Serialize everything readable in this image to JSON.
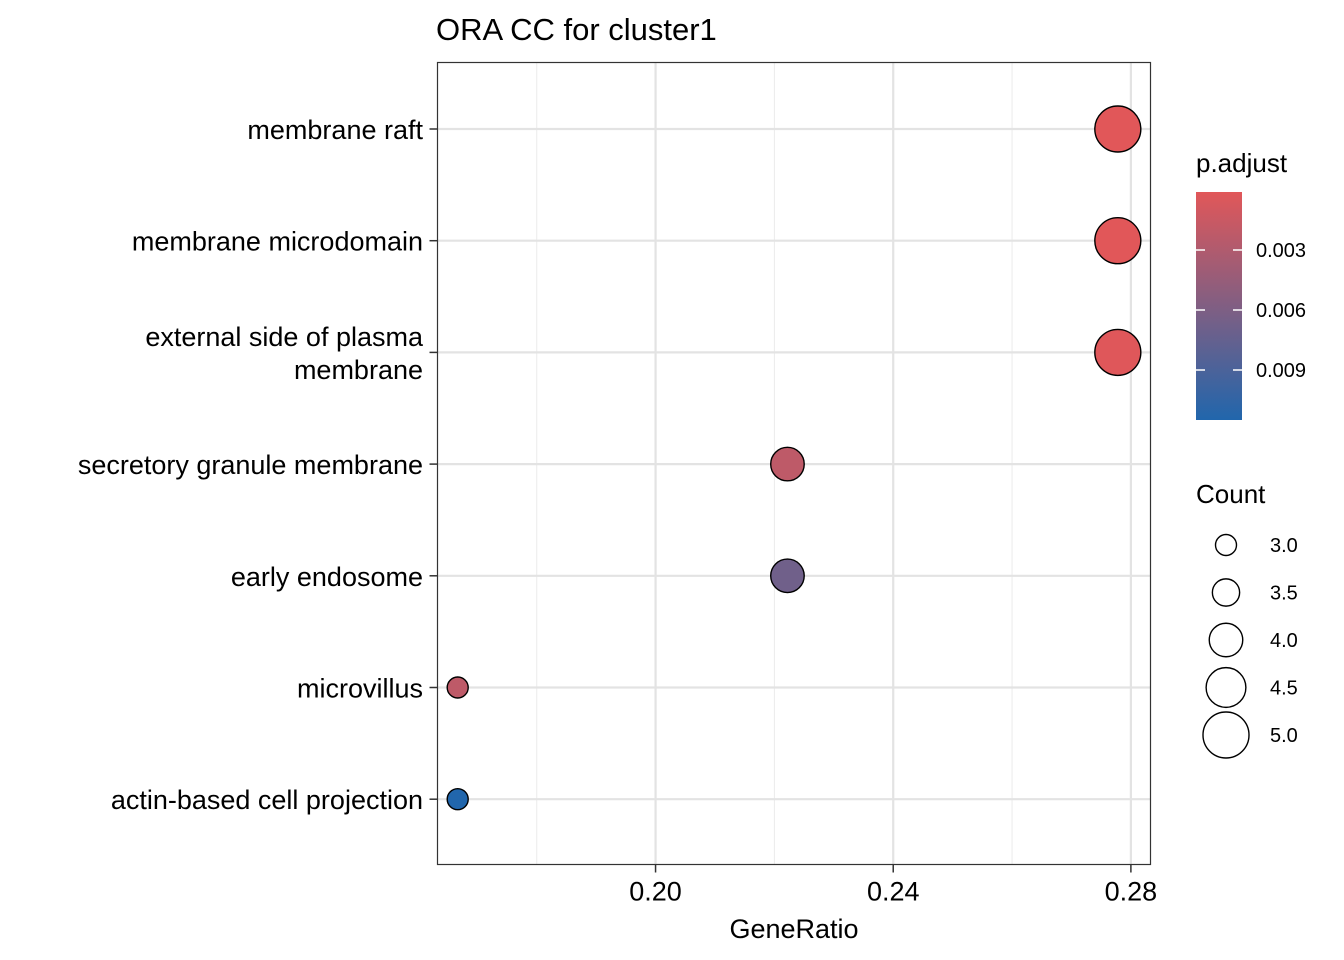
{
  "chart_data": {
    "type": "scatter",
    "title": "ORA CC for cluster1",
    "xlabel": "GeneRatio",
    "ylabel": "",
    "xlim": [
      0.1633,
      0.2833
    ],
    "x_ticks": [
      {
        "value": 0.2,
        "label": "0.20"
      },
      {
        "value": 0.24,
        "label": "0.24"
      },
      {
        "value": 0.28,
        "label": "0.28"
      }
    ],
    "x_minor_ticks": [
      0.18,
      0.22,
      0.26
    ],
    "grid": true,
    "categories": [
      "membrane raft",
      "membrane microdomain",
      "external side of plasma membrane",
      "secretory granule membrane",
      "early endosome",
      "microvillus",
      "actin-based cell projection"
    ],
    "category_lines": [
      [
        "membrane raft"
      ],
      [
        "membrane microdomain"
      ],
      [
        "external side of plasma",
        "membrane"
      ],
      [
        "secretory granule membrane"
      ],
      [
        "early endosome"
      ],
      [
        "microvillus"
      ],
      [
        "actin-based cell projection"
      ]
    ],
    "points": [
      {
        "term": "membrane raft",
        "gene_ratio": 0.2778,
        "count": 5,
        "p_adjust": 0.0001
      },
      {
        "term": "membrane microdomain",
        "gene_ratio": 0.2778,
        "count": 5,
        "p_adjust": 0.0001
      },
      {
        "term": "external side of plasma membrane",
        "gene_ratio": 0.2778,
        "count": 5,
        "p_adjust": 0.0002
      },
      {
        "term": "secretory granule membrane",
        "gene_ratio": 0.2222,
        "count": 4,
        "p_adjust": 0.0022
      },
      {
        "term": "early endosome",
        "gene_ratio": 0.2222,
        "count": 4,
        "p_adjust": 0.0068
      },
      {
        "term": "microvillus",
        "gene_ratio": 0.1667,
        "count": 3,
        "p_adjust": 0.0022
      },
      {
        "term": "actin-based cell projection",
        "gene_ratio": 0.1667,
        "count": 3,
        "p_adjust": 0.0115
      }
    ],
    "legend_color": {
      "title": "p.adjust",
      "low_color": "#E15759",
      "high_color": "#2166AC",
      "range": [
        0.0001,
        0.0115
      ],
      "ticks": [
        {
          "value": 0.003,
          "label": "0.003"
        },
        {
          "value": 0.006,
          "label": "0.006"
        },
        {
          "value": 0.009,
          "label": "0.009"
        }
      ],
      "placement": "right"
    },
    "legend_size": {
      "title": "Count",
      "entries": [
        {
          "value": 3.0,
          "label": "3.0"
        },
        {
          "value": 3.5,
          "label": "3.5"
        },
        {
          "value": 4.0,
          "label": "4.0"
        },
        {
          "value": 4.5,
          "label": "4.5"
        },
        {
          "value": 5.0,
          "label": "5.0"
        }
      ],
      "placement": "right"
    }
  }
}
